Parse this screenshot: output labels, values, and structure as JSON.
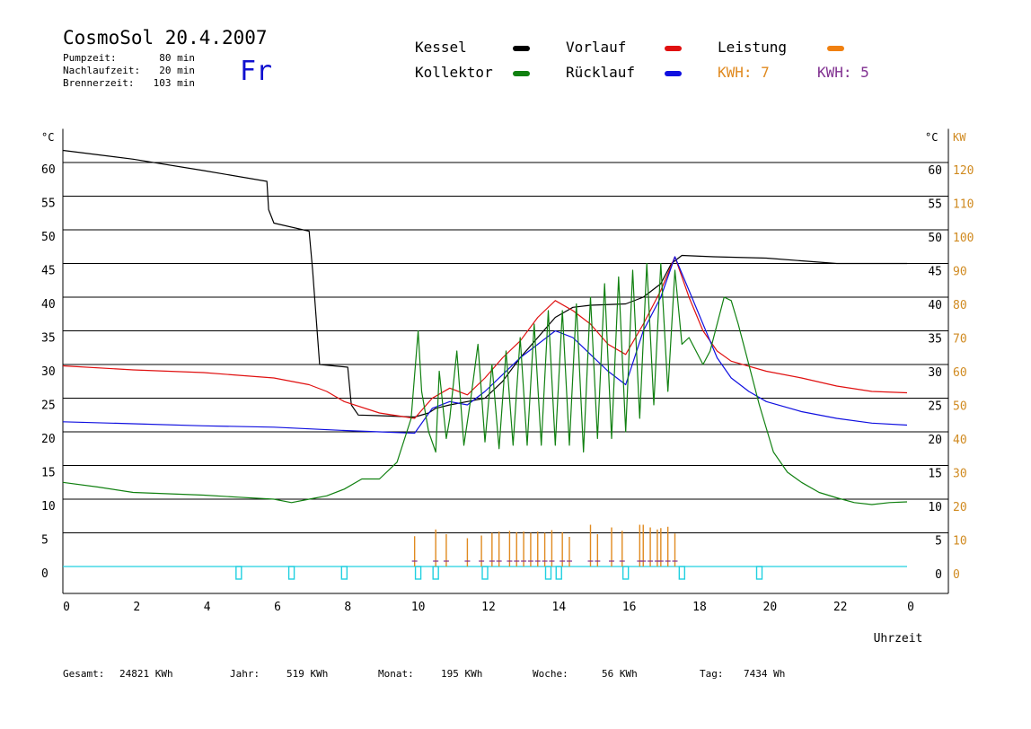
{
  "header": {
    "title": "CosmoSol 20.4.2007",
    "day": "Fr",
    "stats": [
      {
        "label": "Pumpzeit:",
        "value": "80 min"
      },
      {
        "label": "Nachlaufzeit:",
        "value": "20 min"
      },
      {
        "label": "Brennerzeit:",
        "value": "103 min"
      }
    ]
  },
  "legend": {
    "kessel": {
      "label": "Kessel",
      "color": "#000000"
    },
    "vorlauf": {
      "label": "Vorlauf",
      "color": "#e01010"
    },
    "leistung": {
      "label": "Leistung",
      "color": "#f08010"
    },
    "kollektor": {
      "label": "Kollektor",
      "color": "#108010"
    },
    "ruecklauf": {
      "label": "Rücklauf",
      "color": "#1010e0"
    },
    "kwh1": {
      "label": "KWH:",
      "value": "7",
      "color": "#e08a20"
    },
    "kwh2": {
      "label": "KWH:",
      "value": "5",
      "color": "#803090"
    }
  },
  "footer": {
    "gesamt": {
      "label": "Gesamt:",
      "value": "24821 KWh"
    },
    "jahr": {
      "label": "Jahr:",
      "value": "519 KWh"
    },
    "monat": {
      "label": "Monat:",
      "value": "195 KWh"
    },
    "woche": {
      "label": "Woche:",
      "value": "56 KWh"
    },
    "tag": {
      "label": "Tag:",
      "value": "7434 Wh"
    }
  },
  "chart_data": {
    "type": "line",
    "xlabel": "Uhrzeit",
    "ylabel_left": "°C",
    "ylabel_right_1": "°C",
    "ylabel_right_2": "KW",
    "xlim": [
      0,
      24
    ],
    "ylim": [
      0,
      65
    ],
    "x_ticks": [
      "0",
      "2",
      "4",
      "6",
      "8",
      "10",
      "12",
      "14",
      "16",
      "18",
      "20",
      "22",
      "0"
    ],
    "y_ticks": [
      0,
      5,
      10,
      15,
      20,
      25,
      30,
      35,
      40,
      45,
      50,
      55,
      60
    ],
    "y2_ticks": [
      0,
      10,
      20,
      30,
      40,
      50,
      60,
      70,
      80,
      90,
      100,
      110,
      120
    ],
    "grid": true,
    "series": [
      {
        "name": "Kessel",
        "color": "#000000",
        "points": [
          [
            0,
            61.8
          ],
          [
            2,
            60.5
          ],
          [
            4,
            58.8
          ],
          [
            5.8,
            57.2
          ],
          [
            5.85,
            53
          ],
          [
            6,
            51
          ],
          [
            7,
            49.8
          ],
          [
            7.1,
            44
          ],
          [
            7.2,
            37
          ],
          [
            7.3,
            30
          ],
          [
            8.1,
            29.6
          ],
          [
            8.2,
            24
          ],
          [
            8.4,
            22.5
          ],
          [
            9,
            22.4
          ],
          [
            10,
            22.2
          ],
          [
            10.4,
            22.8
          ],
          [
            10.6,
            23.5
          ],
          [
            11,
            24
          ],
          [
            11.5,
            24.5
          ],
          [
            12,
            25
          ],
          [
            12.5,
            27.5
          ],
          [
            13,
            31
          ],
          [
            13.5,
            34
          ],
          [
            14,
            37
          ],
          [
            14.5,
            38.5
          ],
          [
            15,
            38.8
          ],
          [
            16,
            39
          ],
          [
            16.5,
            40
          ],
          [
            17,
            42
          ],
          [
            17.3,
            45
          ],
          [
            17.6,
            46.2
          ],
          [
            18.5,
            46
          ],
          [
            20,
            45.8
          ],
          [
            22,
            45
          ],
          [
            24,
            45
          ]
        ]
      },
      {
        "name": "Vorlauf",
        "color": "#e01010",
        "points": [
          [
            0,
            29.8
          ],
          [
            2,
            29.2
          ],
          [
            4,
            28.8
          ],
          [
            6,
            28
          ],
          [
            7,
            27
          ],
          [
            7.5,
            26
          ],
          [
            8,
            24.5
          ],
          [
            9,
            22.8
          ],
          [
            10,
            22
          ],
          [
            10.5,
            25
          ],
          [
            11,
            26.5
          ],
          [
            11.5,
            25.5
          ],
          [
            12,
            28
          ],
          [
            12.5,
            31
          ],
          [
            13,
            33.5
          ],
          [
            13.5,
            37
          ],
          [
            14,
            39.5
          ],
          [
            14.5,
            38
          ],
          [
            15,
            36
          ],
          [
            15.5,
            33
          ],
          [
            16,
            31.5
          ],
          [
            16.5,
            36
          ],
          [
            17,
            41
          ],
          [
            17.4,
            46
          ],
          [
            17.8,
            40
          ],
          [
            18.2,
            35
          ],
          [
            18.6,
            32
          ],
          [
            19,
            30.5
          ],
          [
            20,
            29
          ],
          [
            21,
            28
          ],
          [
            22,
            26.8
          ],
          [
            23,
            26
          ],
          [
            24,
            25.8
          ]
        ]
      },
      {
        "name": "Rücklauf",
        "color": "#1010e0",
        "points": [
          [
            0,
            21.5
          ],
          [
            2,
            21.2
          ],
          [
            4,
            20.9
          ],
          [
            6,
            20.7
          ],
          [
            8,
            20.2
          ],
          [
            10,
            19.8
          ],
          [
            10.5,
            23.5
          ],
          [
            11,
            24.5
          ],
          [
            11.5,
            24
          ],
          [
            12,
            26
          ],
          [
            12.5,
            28.5
          ],
          [
            13,
            31
          ],
          [
            13.5,
            33
          ],
          [
            14,
            35
          ],
          [
            14.5,
            34
          ],
          [
            15,
            31.5
          ],
          [
            15.5,
            29
          ],
          [
            16,
            27
          ],
          [
            16.5,
            35
          ],
          [
            17,
            40
          ],
          [
            17.4,
            46
          ],
          [
            17.8,
            41
          ],
          [
            18.2,
            36
          ],
          [
            18.6,
            31
          ],
          [
            19,
            28
          ],
          [
            19.5,
            26
          ],
          [
            20,
            24.5
          ],
          [
            21,
            23
          ],
          [
            22,
            22
          ],
          [
            23,
            21.3
          ],
          [
            24,
            21
          ]
        ]
      },
      {
        "name": "Kollektor",
        "color": "#108010",
        "points": [
          [
            0,
            12.5
          ],
          [
            1,
            11.8
          ],
          [
            2,
            11
          ],
          [
            3,
            10.8
          ],
          [
            4,
            10.6
          ],
          [
            5,
            10.3
          ],
          [
            6,
            10
          ],
          [
            6.5,
            9.5
          ],
          [
            7,
            10
          ],
          [
            7.5,
            10.5
          ],
          [
            8,
            11.5
          ],
          [
            8.5,
            13
          ],
          [
            9,
            13
          ],
          [
            9.5,
            15.5
          ],
          [
            9.9,
            22
          ],
          [
            10.1,
            35
          ],
          [
            10.2,
            26
          ],
          [
            10.4,
            20
          ],
          [
            10.6,
            17
          ],
          [
            10.7,
            29
          ],
          [
            10.9,
            19
          ],
          [
            11,
            22
          ],
          [
            11.2,
            32
          ],
          [
            11.4,
            18
          ],
          [
            11.6,
            25
          ],
          [
            11.8,
            33
          ],
          [
            12,
            18.5
          ],
          [
            12.2,
            30
          ],
          [
            12.4,
            17.5
          ],
          [
            12.6,
            32
          ],
          [
            12.8,
            18
          ],
          [
            13,
            34
          ],
          [
            13.2,
            18
          ],
          [
            13.4,
            36
          ],
          [
            13.6,
            18
          ],
          [
            13.8,
            38
          ],
          [
            14,
            18
          ],
          [
            14.2,
            38
          ],
          [
            14.4,
            18
          ],
          [
            14.6,
            39
          ],
          [
            14.8,
            17
          ],
          [
            15,
            40
          ],
          [
            15.2,
            19
          ],
          [
            15.4,
            42
          ],
          [
            15.6,
            19
          ],
          [
            15.8,
            43
          ],
          [
            16,
            20
          ],
          [
            16.2,
            44
          ],
          [
            16.4,
            22
          ],
          [
            16.6,
            45
          ],
          [
            16.8,
            24
          ],
          [
            17,
            45
          ],
          [
            17.2,
            26
          ],
          [
            17.4,
            44
          ],
          [
            17.6,
            33
          ],
          [
            17.8,
            34
          ],
          [
            18,
            32
          ],
          [
            18.2,
            30
          ],
          [
            18.4,
            32
          ],
          [
            18.6,
            36
          ],
          [
            18.8,
            40
          ],
          [
            19,
            39.5
          ],
          [
            19.2,
            36
          ],
          [
            19.5,
            30
          ],
          [
            19.8,
            24
          ],
          [
            20.2,
            17
          ],
          [
            20.6,
            14
          ],
          [
            21,
            12.5
          ],
          [
            21.5,
            11
          ],
          [
            22,
            10.2
          ],
          [
            22.5,
            9.5
          ],
          [
            23,
            9.2
          ],
          [
            23.5,
            9.5
          ],
          [
            24,
            9.6
          ]
        ]
      },
      {
        "name": "Leistung",
        "color": "#e08a20",
        "type": "spikes",
        "x": [
          10.0,
          10.6,
          10.9,
          11.5,
          11.9,
          12.2,
          12.4,
          12.7,
          12.9,
          13.1,
          13.3,
          13.5,
          13.7,
          13.9,
          14.2,
          14.4,
          15.0,
          15.2,
          15.6,
          15.9,
          16.4,
          16.5,
          16.7,
          16.9,
          17.0,
          17.2,
          17.4
        ],
        "values": [
          4.5,
          5.5,
          4.8,
          4.2,
          4.6,
          5.0,
          5.2,
          5.3,
          5.1,
          5.2,
          5.0,
          5.2,
          5.0,
          5.4,
          5.1,
          4.4,
          6.2,
          4.8,
          5.8,
          5.3,
          6.2,
          6.2,
          5.8,
          5.5,
          5.7,
          5.9,
          4.9
        ]
      }
    ],
    "indicators": {
      "name": "Pumpe",
      "color": "#20d0e0",
      "x": [
        5.0,
        6.5,
        8.0,
        10.1,
        10.6,
        12.0,
        13.8,
        14.1,
        16.0,
        17.6,
        19.8
      ]
    }
  }
}
